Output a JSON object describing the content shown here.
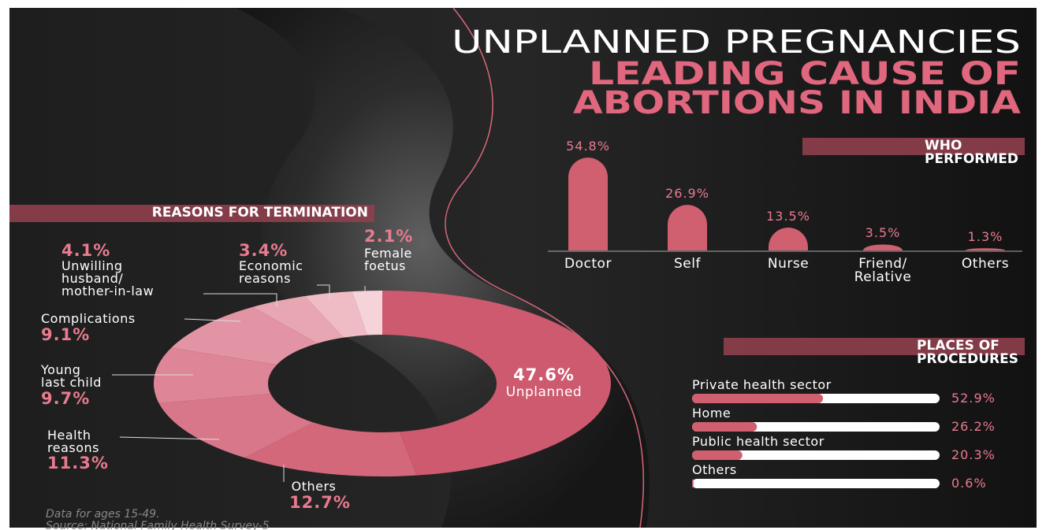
{
  "header": {
    "lines": [
      "UNPLANNED PREGNANCIES",
      "LEADING CAUSE OF",
      "ABORTIONS IN INDIA"
    ]
  },
  "chart_data": [
    {
      "type": "pie",
      "donut": true,
      "title": "REASONS FOR TERMINATION",
      "categories": [
        "Unplanned",
        "Others",
        "Health\nreasons",
        "Young\nlast child",
        "Complications",
        "Unwilling\nhusband/\nmother-in-law",
        "Economic\nreasons",
        "Female\nfoetus"
      ],
      "values": [
        47.6,
        12.7,
        11.3,
        9.7,
        9.1,
        4.1,
        3.4,
        2.1
      ],
      "value_labels": [
        "47.6%",
        "12.7%",
        "11.3%",
        "9.7%",
        "9.1%",
        "4.1%",
        "3.4%",
        "2.1%"
      ],
      "colors": [
        "#cd5a6f",
        "#d4687b",
        "#d9778a",
        "#de8597",
        "#e394a4",
        "#e8a6b3",
        "#efbcc5",
        "#f5d3d9"
      ]
    },
    {
      "type": "bar",
      "title": "WHO PERFORMED",
      "categories": [
        "Doctor",
        "Self",
        "Nurse",
        "Friend/\nRelative",
        "Others"
      ],
      "values": [
        54.8,
        26.9,
        13.5,
        3.5,
        1.3
      ],
      "value_labels": [
        "54.8%",
        "26.9%",
        "13.5%",
        "3.5%",
        "1.3%"
      ],
      "color": "#d0606f"
    },
    {
      "type": "hbar",
      "title": "PLACES OF PROCEDURES",
      "categories": [
        "Private health sector",
        "Home",
        "Public health sector",
        "Others"
      ],
      "values": [
        52.9,
        26.2,
        20.3,
        0.6
      ],
      "value_labels": [
        "52.9%",
        "26.2%",
        "20.3%",
        "0.6%"
      ],
      "color": "#d0606f",
      "track_color": "#ffffff"
    }
  ],
  "footnote": [
    "Data for ages 15-49.",
    "Source: National Family Health Survey-5"
  ]
}
